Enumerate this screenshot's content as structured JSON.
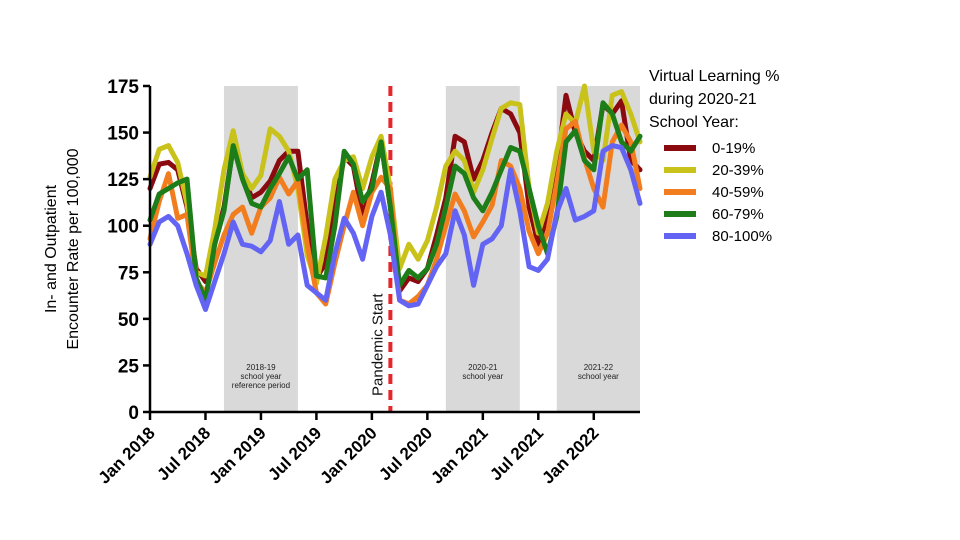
{
  "chart_data": {
    "type": "line",
    "ylabel": [
      "In- and Outpatient",
      "Encounter Rate per 100,000"
    ],
    "ylim": [
      0,
      175
    ],
    "yticks": [
      0,
      25,
      50,
      75,
      100,
      125,
      150,
      175
    ],
    "x_axis": {
      "start": "2018-01",
      "end": "2022-06"
    },
    "xticks": [
      {
        "month": "2018-01",
        "label": "Jan 2018"
      },
      {
        "month": "2018-07",
        "label": "Jul 2018"
      },
      {
        "month": "2019-01",
        "label": "Jan 2019"
      },
      {
        "month": "2019-07",
        "label": "Jul 2019"
      },
      {
        "month": "2020-01",
        "label": "Jan 2020"
      },
      {
        "month": "2020-07",
        "label": "Jul 2020"
      },
      {
        "month": "2021-01",
        "label": "Jan 2021"
      },
      {
        "month": "2021-07",
        "label": "Jul 2021"
      },
      {
        "month": "2022-01",
        "label": "Jan 2022"
      }
    ],
    "x": [
      "2018-01",
      "2018-02",
      "2018-03",
      "2018-04",
      "2018-05",
      "2018-06",
      "2018-07",
      "2018-08",
      "2018-09",
      "2018-10",
      "2018-11",
      "2018-12",
      "2019-01",
      "2019-02",
      "2019-03",
      "2019-04",
      "2019-05",
      "2019-06",
      "2019-07",
      "2019-08",
      "2019-09",
      "2019-10",
      "2019-11",
      "2019-12",
      "2020-01",
      "2020-02",
      "2020-03",
      "2020-04",
      "2020-05",
      "2020-06",
      "2020-07",
      "2020-08",
      "2020-09",
      "2020-10",
      "2020-11",
      "2020-12",
      "2021-01",
      "2021-02",
      "2021-03",
      "2021-04",
      "2021-05",
      "2021-06",
      "2021-07",
      "2021-08",
      "2021-09",
      "2021-10",
      "2021-11",
      "2021-12",
      "2022-01",
      "2022-02",
      "2022-03",
      "2022-04",
      "2022-05",
      "2022-06"
    ],
    "shaded_periods": [
      {
        "start": "2018-09",
        "end": "2019-05",
        "label": [
          "2018-19",
          "school year",
          "reference period"
        ]
      },
      {
        "start": "2020-09",
        "end": "2021-05",
        "label": [
          "2020-21",
          "school year"
        ]
      },
      {
        "start": "2021-09",
        "end": "2022-06",
        "label": [
          "2021-22",
          "school year"
        ]
      }
    ],
    "reference_line": {
      "month": "2020-03",
      "label": "Pandemic Start",
      "color": "#e8262a"
    },
    "legend": {
      "title": [
        "Virtual Learning %",
        "during 2020-21",
        "School Year:"
      ],
      "position": "right"
    },
    "series": [
      {
        "name": "0-19%",
        "color": "#8b0a10",
        "values": [
          120,
          133,
          134,
          130,
          110,
          77,
          70,
          90,
          110,
          142,
          128,
          115,
          118,
          124,
          135,
          140,
          140,
          100,
          72,
          80,
          110,
          137,
          132,
          105,
          123,
          145,
          110,
          65,
          72,
          70,
          77,
          95,
          115,
          148,
          145,
          125,
          135,
          150,
          163,
          160,
          150,
          110,
          90,
          105,
          130,
          170,
          150,
          140,
          135,
          165,
          160,
          167,
          135,
          130
        ]
      },
      {
        "name": "20-39%",
        "color": "#c9c21a",
        "values": [
          126,
          141,
          143,
          134,
          112,
          75,
          73,
          98,
          130,
          151,
          128,
          120,
          127,
          152,
          148,
          140,
          120,
          84,
          69,
          94,
          125,
          135,
          137,
          120,
          137,
          148,
          120,
          77,
          90,
          82,
          92,
          110,
          132,
          140,
          135,
          118,
          130,
          147,
          163,
          166,
          165,
          120,
          96,
          112,
          140,
          160,
          155,
          175,
          140,
          135,
          170,
          172,
          160,
          145
        ]
      },
      {
        "name": "40-59%",
        "color": "#f27d1f",
        "values": [
          93,
          113,
          128,
          104,
          106,
          70,
          64,
          80,
          95,
          106,
          110,
          96,
          110,
          115,
          126,
          117,
          124,
          90,
          64,
          58,
          80,
          100,
          118,
          100,
          118,
          126,
          120,
          60,
          58,
          62,
          68,
          82,
          100,
          117,
          108,
          94,
          102,
          111,
          135,
          132,
          120,
          97,
          85,
          96,
          123,
          152,
          156,
          136,
          120,
          110,
          145,
          154,
          145,
          120
        ]
      },
      {
        "name": "60-79%",
        "color": "#1d7d19",
        "values": [
          103,
          117,
          120,
          123,
          125,
          72,
          60,
          90,
          108,
          143,
          125,
          112,
          110,
          120,
          128,
          137,
          125,
          130,
          73,
          72,
          100,
          140,
          133,
          113,
          120,
          145,
          110,
          68,
          76,
          72,
          77,
          90,
          110,
          132,
          128,
          115,
          108,
          118,
          130,
          142,
          140,
          120,
          100,
          85,
          105,
          145,
          151,
          135,
          130,
          166,
          160,
          145,
          140,
          148
        ]
      },
      {
        "name": "80-100%",
        "color": "#6464f4",
        "values": [
          90,
          102,
          105,
          100,
          85,
          68,
          55,
          70,
          85,
          102,
          90,
          89,
          86,
          92,
          113,
          90,
          95,
          68,
          64,
          60,
          85,
          104,
          96,
          82,
          105,
          118,
          95,
          60,
          57,
          58,
          68,
          78,
          85,
          108,
          95,
          68,
          90,
          93,
          100,
          130,
          108,
          78,
          76,
          82,
          107,
          120,
          103,
          105,
          108,
          140,
          143,
          142,
          130,
          112
        ]
      }
    ]
  }
}
